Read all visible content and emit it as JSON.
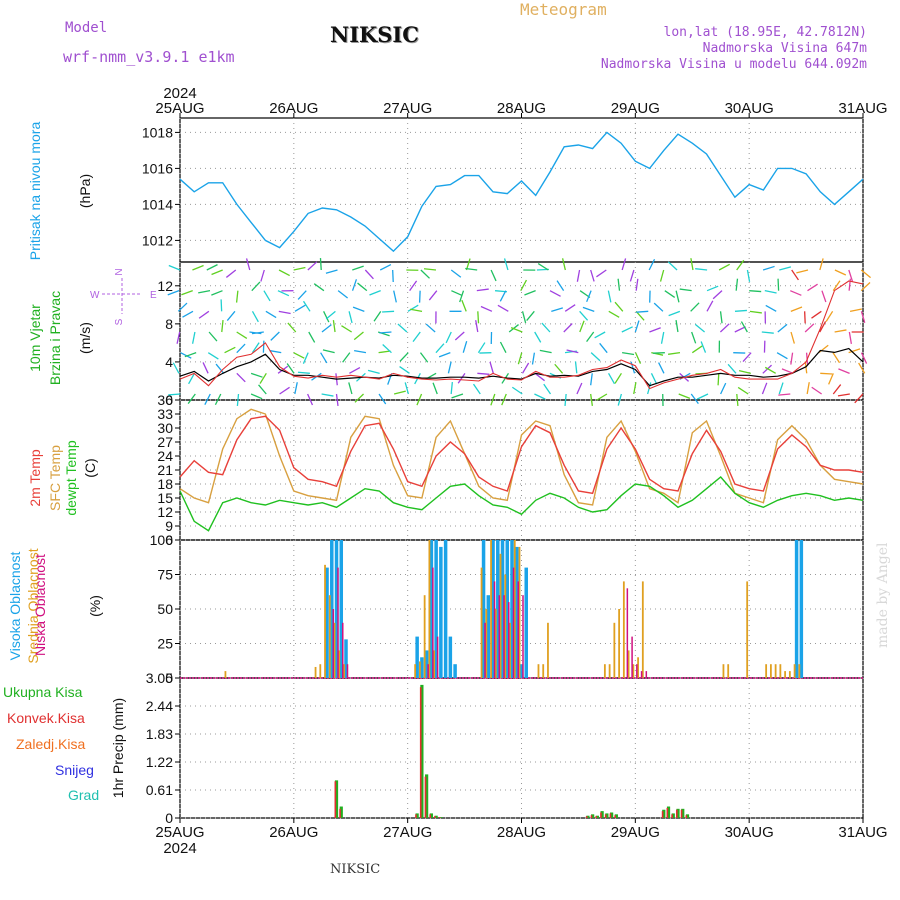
{
  "header": {
    "model_label": "Model",
    "model_name": "wrf-nmm_v3.9.1 e1km",
    "station": "NIKSIC",
    "meteogram": "Meteogram",
    "lonlat": "lon,lat (18.95E, 42.7812N)",
    "elevation": "Nadmorska Visina 647m",
    "model_elevation": "Nadmorska Visina u modelu 644.092m",
    "footer_station": "NIKSIC",
    "credit": "made by Angel"
  },
  "colors": {
    "pressure": "#1aa3e8",
    "temp2m": "#e8403a",
    "sfc_temp": "#d8a040",
    "dewpt": "#20c020",
    "high_cloud": "#1aa3e8",
    "mid_cloud": "#e0a020",
    "low_cloud": "#d01080",
    "total_precip": "#20b020",
    "conv_precip": "#e03030",
    "frozen_precip": "#f07020",
    "snow": "#3030e0",
    "hail": "#20c0b0",
    "header_purple": "#a050d0",
    "meteogram_gold": "#e0b060"
  },
  "chart_data": [
    {
      "type": "line",
      "panel": "pressure",
      "y_title": "Pritisak na nivou mora",
      "unit": "(hPa)",
      "ylim": [
        1010.8,
        1018.8
      ],
      "yticks": [
        1012,
        1014,
        1016,
        1018
      ],
      "grid": true,
      "x_hours": [
        0,
        3,
        6,
        9,
        12,
        15,
        18,
        21,
        24,
        27,
        30,
        33,
        36,
        39,
        42,
        45,
        48,
        51,
        54,
        57,
        60,
        63,
        66,
        69,
        72,
        75,
        78,
        81,
        84,
        87,
        90,
        93,
        96,
        99,
        102,
        105,
        108,
        111,
        114,
        117,
        120,
        123,
        126,
        129,
        132,
        135,
        138,
        141,
        144
      ],
      "series": [
        {
          "values": [
            1015.4,
            1014.7,
            1015.2,
            1015.2,
            1014.0,
            1013.0,
            1012.0,
            1011.6,
            1012.5,
            1013.5,
            1013.8,
            1013.7,
            1013.3,
            1012.8,
            1012.1,
            1011.4,
            1012.2,
            1013.9,
            1015.0,
            1015.1,
            1015.6,
            1015.6,
            1014.7,
            1014.6,
            1015.3,
            1014.5,
            1015.8,
            1017.2,
            1017.3,
            1017.1,
            1018.0,
            1017.4,
            1016.4,
            1016.0,
            1017.0,
            1017.9,
            1017.4,
            1016.8,
            1015.6,
            1014.4,
            1015.1,
            1014.8,
            1016.0,
            1016.0,
            1015.7,
            1014.7,
            1014.0,
            1014.7,
            1015.4
          ]
        }
      ]
    },
    {
      "type": "line",
      "panel": "wind",
      "y_title": "10m Vjetar",
      "y_title2": "Brzina i Pravac",
      "unit": "(m/s)",
      "compass": {
        "n": "N",
        "s": "S",
        "w": "W",
        "e": "E"
      },
      "ylim": [
        0,
        14.5
      ],
      "yticks": [
        0,
        4,
        8,
        12
      ],
      "grid": true,
      "x_hours": [
        0,
        3,
        6,
        9,
        12,
        15,
        18,
        21,
        24,
        27,
        30,
        33,
        36,
        39,
        42,
        45,
        48,
        51,
        54,
        57,
        60,
        63,
        66,
        69,
        72,
        75,
        78,
        81,
        84,
        87,
        90,
        93,
        96,
        99,
        102,
        105,
        108,
        111,
        114,
        117,
        120,
        123,
        126,
        129,
        132,
        135,
        138,
        141,
        144
      ],
      "series": [
        {
          "name": "mean",
          "values": [
            2.5,
            3.0,
            2.0,
            2.8,
            3.5,
            4.0,
            4.8,
            3.2,
            2.6,
            2.6,
            2.4,
            2.2,
            2.3,
            2.4,
            2.3,
            2.6,
            2.5,
            2.3,
            2.3,
            2.4,
            2.4,
            2.3,
            2.5,
            2.3,
            2.2,
            2.8,
            2.5,
            2.6,
            2.5,
            3.0,
            3.2,
            3.8,
            3.2,
            1.5,
            2.0,
            2.4,
            2.4,
            2.6,
            2.8,
            2.6,
            2.6,
            2.4,
            2.5,
            2.8,
            3.5,
            5.2,
            5.0,
            5.4,
            4.0
          ]
        },
        {
          "name": "gust",
          "values": [
            2.2,
            2.8,
            1.5,
            3.2,
            4.5,
            4.8,
            6.0,
            3.5,
            2.5,
            2.3,
            2.6,
            2.4,
            2.6,
            2.4,
            2.2,
            2.8,
            2.4,
            2.2,
            2.1,
            2.2,
            2.1,
            2.0,
            2.8,
            2.2,
            2.1,
            3.0,
            2.4,
            2.4,
            2.6,
            3.2,
            3.4,
            4.2,
            3.6,
            1.2,
            1.8,
            2.2,
            2.6,
            2.8,
            3.2,
            2.4,
            2.2,
            2.2,
            2.2,
            2.8,
            4.0,
            7.5,
            11.5,
            12.5,
            12.2
          ]
        }
      ]
    },
    {
      "type": "line",
      "panel": "temperature",
      "y_title": "2m Temp",
      "y_title2": "SFC Temp",
      "y_title3": "dewpt Temp",
      "unit": "(C)",
      "ylim": [
        6,
        36
      ],
      "yticks": [
        6,
        9,
        12,
        15,
        18,
        21,
        24,
        27,
        30,
        33,
        36
      ],
      "grid": true,
      "x_hours": [
        0,
        3,
        6,
        9,
        12,
        15,
        18,
        21,
        24,
        27,
        30,
        33,
        36,
        39,
        42,
        45,
        48,
        51,
        54,
        57,
        60,
        63,
        66,
        69,
        72,
        75,
        78,
        81,
        84,
        87,
        90,
        93,
        96,
        99,
        102,
        105,
        108,
        111,
        114,
        117,
        120,
        123,
        126,
        129,
        132,
        135,
        138,
        141,
        144
      ],
      "series": [
        {
          "name": "2m Temp",
          "values": [
            19.5,
            23.0,
            20.5,
            20.0,
            27.5,
            32.0,
            32.5,
            29.5,
            21.5,
            19.0,
            18.5,
            17.5,
            25.0,
            30.5,
            31.0,
            25.5,
            18.5,
            17.5,
            24.0,
            27.0,
            24.5,
            19.5,
            17.5,
            16.5,
            26.0,
            30.5,
            29.0,
            22.0,
            16.5,
            16.0,
            25.5,
            30.0,
            25.5,
            19.0,
            17.0,
            16.5,
            24.5,
            29.5,
            25.0,
            18.0,
            17.0,
            16.5,
            25.5,
            28.5,
            26.0,
            22.0,
            21.0,
            21.0,
            20.5
          ]
        },
        {
          "name": "SFC Temp",
          "values": [
            17.0,
            15.0,
            14.0,
            25.5,
            32.0,
            34.0,
            33.0,
            24.0,
            16.5,
            15.5,
            15.0,
            14.5,
            28.0,
            32.5,
            32.0,
            22.0,
            15.5,
            15.0,
            28.0,
            31.5,
            24.5,
            17.5,
            15.0,
            14.5,
            28.5,
            31.5,
            30.5,
            20.0,
            14.0,
            13.5,
            28.0,
            31.5,
            25.0,
            17.0,
            16.0,
            14.0,
            29.0,
            31.5,
            24.0,
            16.0,
            15.0,
            14.0,
            27.5,
            30.5,
            27.5,
            22.0,
            19.0,
            18.5,
            18.0
          ]
        },
        {
          "name": "dewpt Temp",
          "values": [
            16.5,
            10.0,
            8.0,
            14.0,
            15.0,
            14.0,
            13.5,
            14.5,
            14.0,
            13.5,
            14.0,
            13.0,
            15.0,
            17.0,
            16.5,
            14.0,
            13.0,
            12.5,
            15.0,
            17.5,
            18.0,
            15.5,
            13.5,
            13.0,
            11.5,
            14.5,
            16.0,
            15.0,
            13.0,
            12.0,
            12.5,
            15.5,
            18.0,
            17.5,
            15.5,
            13.0,
            14.5,
            17.0,
            19.5,
            16.0,
            14.0,
            13.0,
            14.5,
            15.5,
            16.0,
            15.5,
            14.5,
            15.0,
            14.5
          ]
        }
      ]
    },
    {
      "type": "bar",
      "panel": "cloud",
      "y_title": "Visoka Oblacnost",
      "y_title2": "Srednja Oblacnost",
      "y_title3": "Niska Oblacnost",
      "unit": "(%)",
      "ylim": [
        0,
        100
      ],
      "yticks": [
        0,
        25,
        50,
        75,
        100
      ],
      "grid": true,
      "x_hours": [
        10,
        29,
        30,
        31,
        32,
        33,
        34,
        35,
        50,
        51,
        52,
        53,
        54,
        55,
        56,
        57,
        58,
        60,
        64,
        65,
        66,
        67,
        68,
        69,
        70,
        71,
        72,
        73,
        74,
        75,
        76,
        77,
        78,
        80,
        90,
        91,
        92,
        93,
        94,
        95,
        96,
        97,
        98,
        99,
        100,
        115,
        116,
        120,
        124,
        125,
        126,
        127,
        128,
        129,
        130,
        131
      ],
      "series": [
        {
          "name": "Visoka Oblacnost",
          "values": [
            0,
            0,
            0,
            80,
            100,
            100,
            100,
            28,
            30,
            15,
            20,
            100,
            100,
            95,
            100,
            30,
            10,
            0,
            100,
            60,
            100,
            100,
            100,
            100,
            100,
            95,
            10,
            80,
            0,
            0,
            0,
            0,
            0,
            0,
            0,
            0,
            0,
            0,
            0,
            0,
            0,
            0,
            0,
            0,
            0,
            0,
            0,
            0,
            0,
            0,
            0,
            0,
            0,
            0,
            100,
            100
          ]
        },
        {
          "name": "Srednja Oblacnost",
          "values": [
            5,
            8,
            10,
            82,
            60,
            40,
            20,
            10,
            10,
            12,
            60,
            100,
            20,
            0,
            0,
            0,
            0,
            0,
            80,
            50,
            100,
            50,
            90,
            75,
            40,
            100,
            95,
            0,
            0,
            0,
            10,
            10,
            40,
            0,
            10,
            10,
            40,
            50,
            70,
            20,
            10,
            15,
            70,
            0,
            0,
            10,
            10,
            70,
            10,
            10,
            10,
            10,
            5,
            5,
            10,
            10
          ]
        },
        {
          "name": "Niska Oblacnost",
          "values": [
            0,
            0,
            0,
            0,
            50,
            80,
            40,
            10,
            0,
            0,
            10,
            80,
            30,
            0,
            0,
            0,
            0,
            0,
            40,
            0,
            70,
            60,
            60,
            55,
            80,
            70,
            60,
            0,
            0,
            0,
            0,
            0,
            0,
            0,
            0,
            0,
            0,
            0,
            65,
            30,
            10,
            5,
            5,
            0,
            0,
            0,
            0,
            0,
            0,
            0,
            0,
            0,
            0,
            0,
            0,
            0
          ]
        }
      ]
    },
    {
      "type": "bar",
      "panel": "precip",
      "y_title": "1hr Precip (mm)",
      "legend": [
        "Ukupna Kisa",
        "Konvek.Kisa",
        "Zaledj.Kisa",
        "Snijeg",
        "Grad"
      ],
      "ylim": [
        0,
        3.05
      ],
      "yticks": [
        0,
        0.61,
        1.22,
        1.83,
        2.44,
        3.05
      ],
      "grid": true,
      "x_hours": [
        33,
        34,
        50,
        51,
        52,
        53,
        54,
        55,
        86,
        87,
        88,
        89,
        90,
        91,
        92,
        102,
        103,
        104,
        105,
        106,
        107
      ],
      "series": [
        {
          "name": "Ukupna Kisa",
          "values": [
            0.82,
            0.25,
            0.1,
            2.9,
            0.95,
            0.1,
            0.05,
            0.02,
            0.05,
            0.08,
            0.05,
            0.15,
            0.1,
            0.12,
            0.08,
            0.18,
            0.25,
            0.1,
            0.2,
            0.2,
            0.08
          ]
        },
        {
          "name": "Konvek.Kisa",
          "values": [
            0.8,
            0.2,
            0.08,
            2.85,
            0.9,
            0.08,
            0.04,
            0.02,
            0.04,
            0.06,
            0.04,
            0.12,
            0.08,
            0.1,
            0.06,
            0.15,
            0.22,
            0.08,
            0.18,
            0.18,
            0.06
          ]
        }
      ]
    }
  ],
  "time_axis": {
    "year": "2024",
    "labels": [
      "25AUG",
      "26AUG",
      "27AUG",
      "28AUG",
      "29AUG",
      "30AUG",
      "31AUG"
    ],
    "label_hours": [
      0,
      24,
      48,
      72,
      96,
      120,
      144
    ],
    "total_hours": 144
  }
}
